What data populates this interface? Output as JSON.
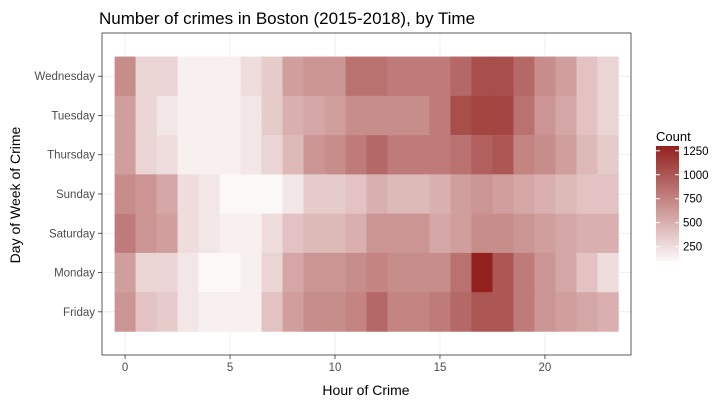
{
  "chart_data": {
    "type": "heatmap",
    "title": "Number of crimes in Boston (2015-2018), by Time",
    "xlabel": "Hour of Crime",
    "ylabel": "Day of Week of Crime",
    "x": [
      0,
      1,
      2,
      3,
      4,
      5,
      6,
      7,
      8,
      9,
      10,
      11,
      12,
      13,
      14,
      15,
      16,
      17,
      18,
      19,
      20,
      21,
      22,
      23
    ],
    "x_ticks": [
      0,
      5,
      10,
      15,
      20
    ],
    "xlim": [
      -0.5,
      23.5
    ],
    "y": [
      "Wednesday",
      "Tuesday",
      "Thursday",
      "Sunday",
      "Saturday",
      "Monday",
      "Friday"
    ],
    "values": [
      [
        700,
        300,
        300,
        150,
        150,
        150,
        250,
        350,
        600,
        650,
        650,
        850,
        850,
        800,
        800,
        800,
        900,
        1050,
        1050,
        900,
        700,
        600,
        400,
        300
      ],
      [
        600,
        300,
        200,
        150,
        150,
        150,
        200,
        350,
        500,
        550,
        600,
        700,
        700,
        700,
        700,
        800,
        1050,
        1100,
        1100,
        850,
        650,
        550,
        400,
        300
      ],
      [
        600,
        300,
        250,
        150,
        150,
        150,
        200,
        300,
        450,
        650,
        700,
        800,
        900,
        800,
        800,
        800,
        850,
        950,
        1000,
        750,
        700,
        600,
        450,
        350
      ],
      [
        700,
        650,
        550,
        250,
        200,
        100,
        100,
        100,
        200,
        350,
        350,
        400,
        500,
        450,
        450,
        500,
        600,
        650,
        600,
        550,
        500,
        450,
        400,
        400
      ],
      [
        800,
        650,
        600,
        250,
        200,
        150,
        150,
        250,
        400,
        450,
        450,
        500,
        650,
        650,
        650,
        550,
        600,
        700,
        700,
        650,
        600,
        550,
        500,
        500
      ],
      [
        600,
        300,
        300,
        200,
        100,
        100,
        150,
        300,
        550,
        650,
        650,
        700,
        750,
        700,
        700,
        700,
        850,
        1300,
        1000,
        800,
        650,
        550,
        400,
        250
      ],
      [
        650,
        400,
        350,
        200,
        150,
        150,
        150,
        400,
        600,
        700,
        700,
        750,
        900,
        750,
        750,
        800,
        900,
        1000,
        1000,
        800,
        650,
        600,
        550,
        500
      ]
    ],
    "color_scale": {
      "low": "#fcf8f8",
      "high": "#92211e",
      "min": 100,
      "max": 1300
    },
    "legend": {
      "title": "Count",
      "ticks": [
        250,
        500,
        750,
        1000,
        1250
      ],
      "position": "right"
    },
    "grid": true
  }
}
